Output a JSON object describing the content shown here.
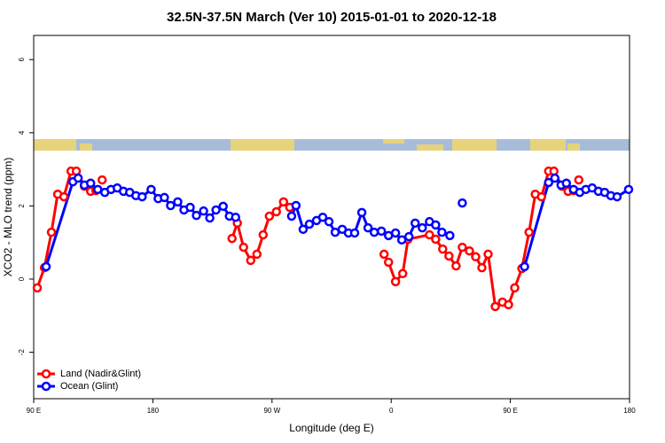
{
  "chart_data": {
    "type": "line",
    "title": "32.5N-37.5N March (Ver 10)   2015-01-01 to 2020-12-18",
    "x_label": "Longitude (deg E)",
    "y_label": "XCO2 - MLO trend (ppm)",
    "xlim": [
      90,
      540
    ],
    "xticks": [
      {
        "value": 90,
        "label": "90 E"
      },
      180,
      {
        "value": 270,
        "label": "90 W"
      },
      {
        "value": 360,
        "label": "0"
      },
      {
        "value": 450,
        "label": "90 E"
      },
      {
        "value": 540,
        "label": "180"
      }
    ],
    "ylim": [
      -3.27,
      6.66
    ],
    "yticks": [
      -2,
      0,
      2,
      4,
      6
    ],
    "legend": "bottom-left",
    "series": [
      {
        "name": "Land (Nadir&Glint)",
        "color": "#ff0000",
        "x": [
          92.7,
          98.1,
          103.4,
          108.1,
          112.8,
          118.2,
          122.2,
          128.3,
          133.0,
          137.0,
          null,
          141.7,
          null,
          239.8,
          243.8,
          248.5,
          253.9,
          258.6,
          263.3,
          268.0,
          273.3,
          278.7,
          283.4,
          null,
          354.6,
          358.0,
          363.3,
          368.7,
          372.7,
          388.9,
          393.6,
          398.9,
          403.6,
          409.0,
          413.7,
          419.1,
          423.8,
          428.5,
          433.2,
          438.6,
          444.0,
          448.6,
          453.3,
          458.7,
          464.1,
          468.8,
          473.5,
          478.9,
          482.9,
          488.9,
          493.6,
          497.7,
          null,
          501.7
        ],
        "values": [
          -0.24,
          0.31,
          1.28,
          2.32,
          2.25,
          2.95,
          2.95,
          2.54,
          2.4,
          2.42,
          null,
          2.71,
          null,
          1.11,
          1.53,
          0.87,
          0.51,
          0.68,
          1.21,
          1.72,
          1.84,
          2.11,
          1.96,
          null,
          0.68,
          0.46,
          -0.07,
          0.15,
          1.09,
          1.21,
          1.09,
          0.82,
          0.63,
          0.36,
          0.87,
          0.77,
          0.61,
          0.31,
          0.68,
          -0.75,
          -0.63,
          -0.7,
          -0.24,
          0.29,
          1.28,
          2.32,
          2.25,
          2.95,
          2.95,
          2.54,
          2.4,
          2.42,
          null,
          2.71
        ]
      },
      {
        "name": "Ocean (Glint)",
        "color": "#0000ff",
        "x": [
          99.4,
          119.6,
          123.6,
          128.3,
          133.0,
          138.4,
          143.7,
          148.4,
          153.1,
          157.8,
          162.5,
          167.2,
          171.9,
          178.7,
          184.0,
          188.7,
          193.4,
          198.8,
          203.5,
          208.2,
          212.9,
          218.3,
          223.0,
          227.7,
          233.1,
          237.8,
          242.5,
          null,
          284.8,
          288.1,
          293.5,
          298.2,
          303.6,
          308.3,
          313.0,
          317.7,
          323.0,
          327.7,
          332.4,
          337.8,
          342.5,
          347.2,
          352.6,
          358.0,
          363.3,
          368.0,
          373.4,
          378.1,
          383.5,
          388.9,
          393.6,
          398.3,
          404.3,
          null,
          413.7,
          null,
          460.7,
          478.9,
          483.6,
          488.3,
          492.3,
          497.7,
          502.4,
          507.0,
          511.8,
          516.5,
          521.2,
          525.9,
          530.6,
          539.3
        ],
        "values": [
          0.34,
          2.66,
          2.76,
          2.57,
          2.62,
          2.45,
          2.37,
          2.45,
          2.49,
          2.4,
          2.37,
          2.28,
          2.25,
          2.45,
          2.2,
          2.23,
          2.01,
          2.11,
          1.89,
          1.96,
          1.74,
          1.86,
          1.67,
          1.89,
          1.99,
          1.72,
          1.69,
          null,
          1.72,
          2.01,
          1.36,
          1.5,
          1.6,
          1.69,
          1.57,
          1.28,
          1.36,
          1.26,
          1.26,
          1.82,
          1.4,
          1.28,
          1.31,
          1.19,
          1.26,
          1.07,
          1.16,
          1.53,
          1.4,
          1.57,
          1.48,
          1.28,
          1.19,
          null,
          2.08,
          null,
          0.34,
          2.64,
          2.76,
          2.57,
          2.62,
          2.45,
          2.37,
          2.45,
          2.49,
          2.4,
          2.37,
          2.28,
          2.25,
          2.45
        ]
      }
    ]
  }
}
